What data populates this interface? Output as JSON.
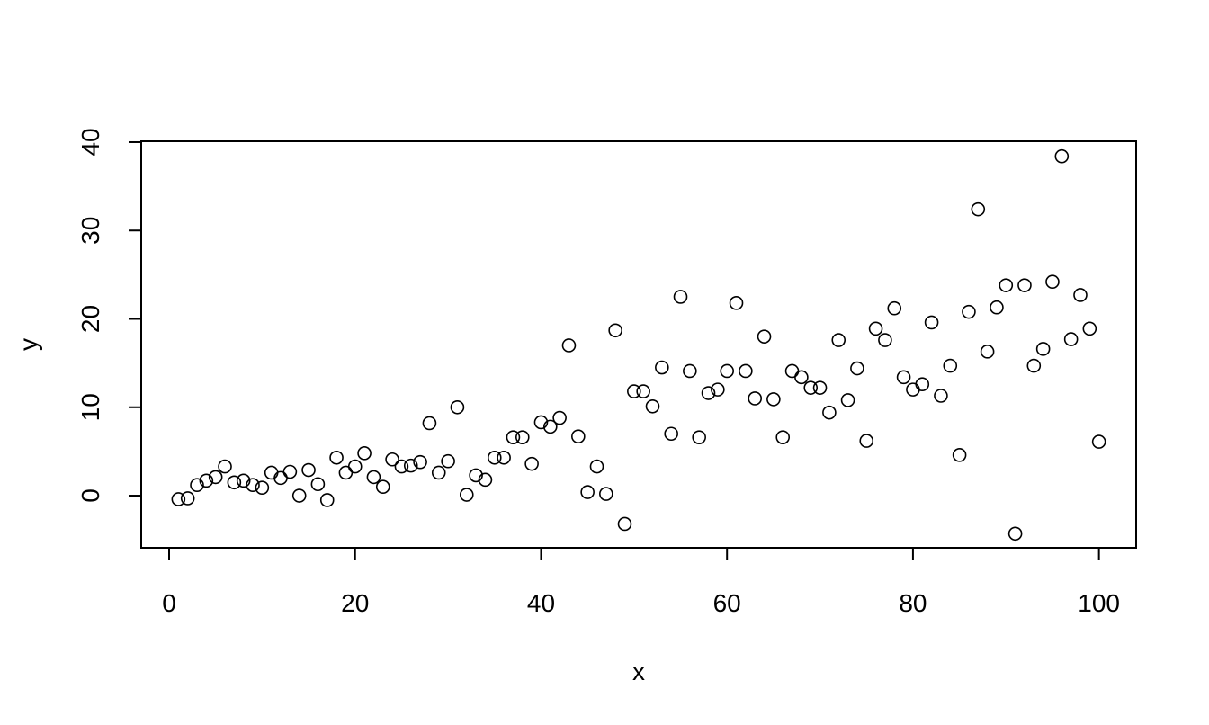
{
  "chart_data": {
    "type": "scatter",
    "xlabel": "x",
    "ylabel": "y",
    "xlim": [
      -3,
      104
    ],
    "ylim": [
      -5.9,
      40.1
    ],
    "x_ticks": [
      0,
      20,
      40,
      60,
      80,
      100
    ],
    "y_ticks": [
      0,
      10,
      20,
      30,
      40
    ],
    "x_tick_labels": [
      "0",
      "20",
      "40",
      "60",
      "80",
      "100"
    ],
    "y_tick_labels": [
      "0",
      "10",
      "20",
      "30",
      "40"
    ],
    "grid": false,
    "marker": "open-circle",
    "points": [
      [
        1,
        -0.4
      ],
      [
        2,
        -0.3
      ],
      [
        3,
        1.2
      ],
      [
        4,
        1.7
      ],
      [
        5,
        2.1
      ],
      [
        6,
        3.3
      ],
      [
        7,
        1.5
      ],
      [
        8,
        1.7
      ],
      [
        9,
        1.2
      ],
      [
        10,
        0.9
      ],
      [
        11,
        2.6
      ],
      [
        12,
        2.0
      ],
      [
        13,
        2.7
      ],
      [
        14,
        0.0
      ],
      [
        15,
        2.9
      ],
      [
        16,
        1.3
      ],
      [
        17,
        -0.5
      ],
      [
        18,
        4.3
      ],
      [
        19,
        2.6
      ],
      [
        20,
        3.3
      ],
      [
        21,
        4.8
      ],
      [
        22,
        2.1
      ],
      [
        23,
        1.0
      ],
      [
        24,
        4.1
      ],
      [
        25,
        3.3
      ],
      [
        26,
        3.4
      ],
      [
        27,
        3.8
      ],
      [
        28,
        8.2
      ],
      [
        29,
        2.6
      ],
      [
        30,
        3.9
      ],
      [
        31,
        10.0
      ],
      [
        32,
        0.1
      ],
      [
        33,
        2.3
      ],
      [
        34,
        1.8
      ],
      [
        35,
        4.3
      ],
      [
        36,
        4.3
      ],
      [
        37,
        6.6
      ],
      [
        38,
        6.6
      ],
      [
        39,
        3.6
      ],
      [
        40,
        8.3
      ],
      [
        41,
        7.8
      ],
      [
        42,
        8.8
      ],
      [
        43,
        17.0
      ],
      [
        44,
        6.7
      ],
      [
        45,
        0.4
      ],
      [
        46,
        3.3
      ],
      [
        47,
        0.2
      ],
      [
        48,
        18.7
      ],
      [
        49,
        -3.2
      ],
      [
        50,
        11.8
      ],
      [
        51,
        11.8
      ],
      [
        52,
        10.1
      ],
      [
        53,
        14.5
      ],
      [
        54,
        7.0
      ],
      [
        55,
        22.5
      ],
      [
        56,
        14.1
      ],
      [
        57,
        6.6
      ],
      [
        58,
        11.6
      ],
      [
        59,
        12.0
      ],
      [
        60,
        14.1
      ],
      [
        61,
        21.8
      ],
      [
        62,
        14.1
      ],
      [
        63,
        11.0
      ],
      [
        64,
        18.0
      ],
      [
        65,
        10.9
      ],
      [
        66,
        6.6
      ],
      [
        67,
        14.1
      ],
      [
        68,
        13.4
      ],
      [
        69,
        12.2
      ],
      [
        70,
        12.2
      ],
      [
        71,
        9.4
      ],
      [
        72,
        17.6
      ],
      [
        73,
        10.8
      ],
      [
        74,
        14.4
      ],
      [
        75,
        6.2
      ],
      [
        76,
        18.9
      ],
      [
        77,
        17.6
      ],
      [
        78,
        21.2
      ],
      [
        79,
        13.4
      ],
      [
        80,
        12.0
      ],
      [
        81,
        12.6
      ],
      [
        82,
        19.6
      ],
      [
        83,
        11.3
      ],
      [
        84,
        14.7
      ],
      [
        85,
        4.6
      ],
      [
        86,
        20.8
      ],
      [
        87,
        32.4
      ],
      [
        88,
        16.3
      ],
      [
        89,
        21.3
      ],
      [
        90,
        23.8
      ],
      [
        91,
        -4.3
      ],
      [
        92,
        23.8
      ],
      [
        93,
        14.7
      ],
      [
        94,
        16.6
      ],
      [
        95,
        24.2
      ],
      [
        96,
        38.4
      ],
      [
        97,
        17.7
      ],
      [
        98,
        22.7
      ],
      [
        99,
        18.9
      ],
      [
        100,
        6.1
      ]
    ]
  }
}
